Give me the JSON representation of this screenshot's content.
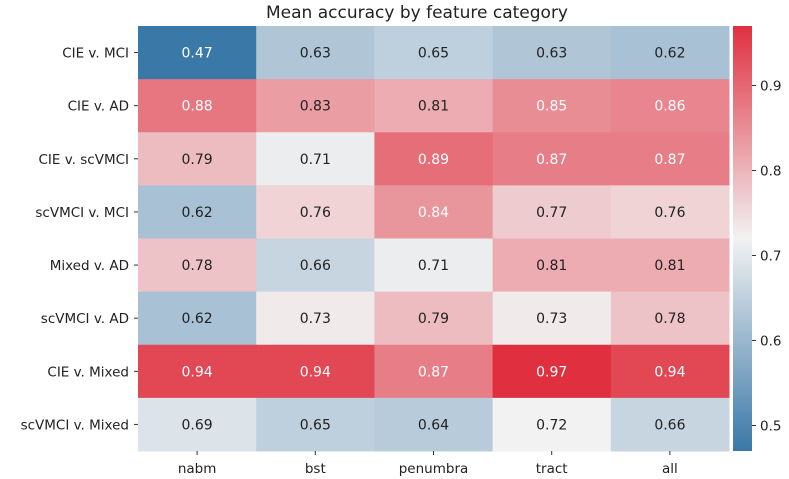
{
  "chart_data": {
    "type": "heatmap",
    "title": "Mean accuracy by feature category",
    "xlabel": "",
    "ylabel": "",
    "x_categories": [
      "nabm",
      "bst",
      "penumbra",
      "tract",
      "all"
    ],
    "y_categories": [
      "CIE v. MCI",
      "CIE v. AD",
      "CIE v. scVMCI",
      "scVMCI v. MCI",
      "Mixed v. AD",
      "scVMCI v. AD",
      "CIE v. Mixed",
      "scVMCI v. Mixed"
    ],
    "values": [
      [
        0.47,
        0.63,
        0.65,
        0.63,
        0.62
      ],
      [
        0.88,
        0.83,
        0.81,
        0.85,
        0.86
      ],
      [
        0.79,
        0.71,
        0.89,
        0.87,
        0.87
      ],
      [
        0.62,
        0.76,
        0.84,
        0.77,
        0.76
      ],
      [
        0.78,
        0.66,
        0.71,
        0.81,
        0.81
      ],
      [
        0.62,
        0.73,
        0.79,
        0.73,
        0.78
      ],
      [
        0.94,
        0.94,
        0.87,
        0.97,
        0.94
      ],
      [
        0.69,
        0.65,
        0.64,
        0.72,
        0.66
      ]
    ],
    "colorbar": {
      "range": [
        0.47,
        0.97
      ],
      "ticks": [
        0.5,
        0.6,
        0.7,
        0.8,
        0.9
      ],
      "tick_labels": [
        "0.5",
        "0.6",
        "0.7",
        "0.8",
        "0.9"
      ],
      "low_color": "#3a78a8",
      "mid_color": "#f2f2f2",
      "high_color": "#e0303f",
      "placement": "right"
    }
  }
}
